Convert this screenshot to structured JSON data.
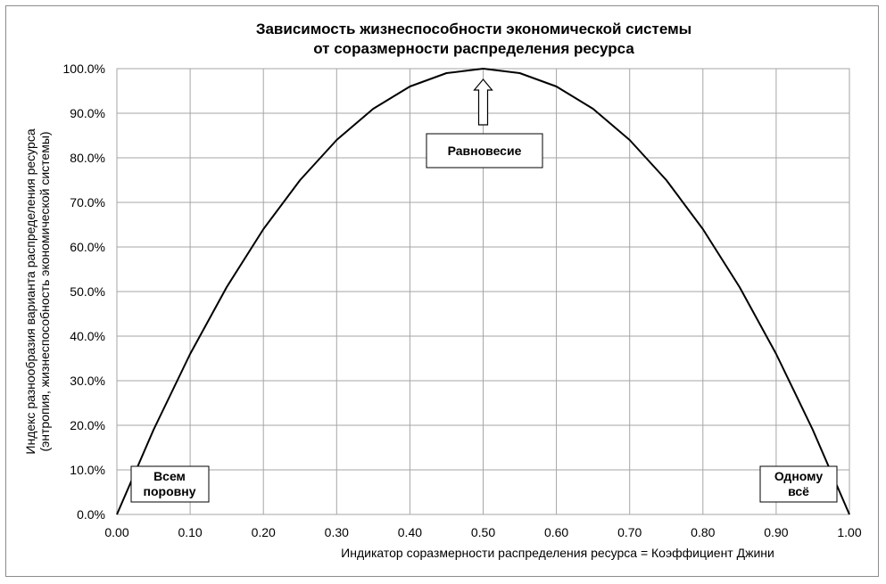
{
  "chart_data": {
    "type": "line",
    "title_lines": [
      "Зависимость жизнеспособности экономической системы",
      "от соразмерности распределения ресурса"
    ],
    "xlabel": "Индикатор соразмерности распределения ресурса = Коэффициент Джини",
    "ylabel_lines": [
      "Индекс разнообразия варианта распределения ресурса",
      "(энтропия, жизнеспособность экономической системы)"
    ],
    "xlim": [
      0,
      1
    ],
    "ylim": [
      0,
      100
    ],
    "x_ticks": [
      "0.00",
      "0.10",
      "0.20",
      "0.30",
      "0.40",
      "0.50",
      "0.60",
      "0.70",
      "0.80",
      "0.90",
      "1.00"
    ],
    "y_ticks": [
      "0.0%",
      "10.0%",
      "20.0%",
      "30.0%",
      "40.0%",
      "50.0%",
      "60.0%",
      "70.0%",
      "80.0%",
      "90.0%",
      "100.0%"
    ],
    "grid": true,
    "legend": "none",
    "line_color": "#000000",
    "series": [
      {
        "x": [
          0.0,
          0.05,
          0.1,
          0.15,
          0.2,
          0.25,
          0.3,
          0.35,
          0.4,
          0.45,
          0.5,
          0.55,
          0.6,
          0.65,
          0.7,
          0.75,
          0.8,
          0.85,
          0.9,
          0.95,
          1.0
        ],
        "y": [
          0,
          19,
          36,
          51,
          64,
          75,
          84,
          91,
          96,
          99,
          100,
          99,
          96,
          91,
          84,
          75,
          64,
          51,
          36,
          19,
          0
        ]
      }
    ],
    "annotations": {
      "equilibrium": {
        "text": "Равновесие",
        "x": 0.5,
        "y": 100
      },
      "equal": {
        "lines": [
          "Всем",
          "поровну"
        ]
      },
      "one": {
        "lines": [
          "Одному",
          "всё"
        ]
      }
    }
  }
}
